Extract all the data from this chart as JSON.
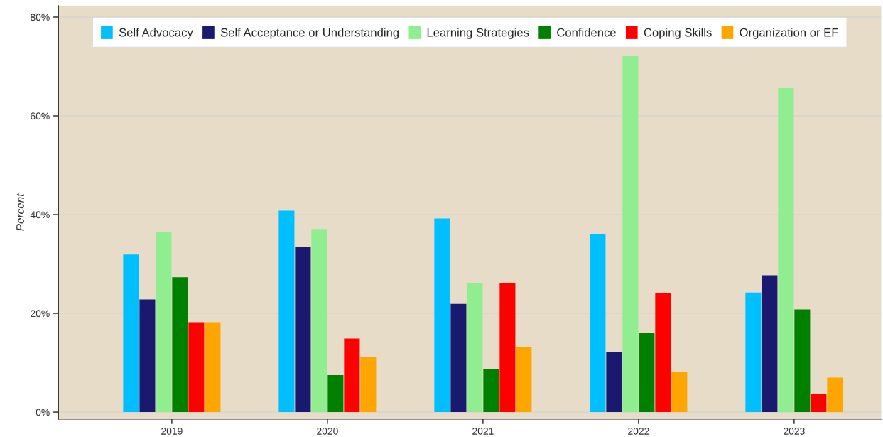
{
  "chart_data": {
    "type": "bar",
    "ylabel": "Percent",
    "categories": [
      "2019",
      "2020",
      "2021",
      "2022",
      "2023"
    ],
    "series": [
      {
        "name": "Self Advocacy",
        "color": "#00bfff",
        "values": [
          31.9,
          40.8,
          39.2,
          36.1,
          24.2
        ]
      },
      {
        "name": "Self Acceptance or Understanding",
        "color": "#191970",
        "values": [
          22.8,
          33.4,
          21.9,
          12.1,
          27.7
        ]
      },
      {
        "name": "Learning Strategies",
        "color": "#90ee90",
        "values": [
          36.5,
          37.1,
          26.2,
          72.1,
          65.6
        ]
      },
      {
        "name": "Confidence",
        "color": "#008000",
        "values": [
          27.3,
          7.5,
          8.8,
          16.1,
          20.8
        ]
      },
      {
        "name": "Coping Skills",
        "color": "#ff0000",
        "values": [
          18.2,
          14.9,
          26.2,
          24.1,
          3.6
        ]
      },
      {
        "name": "Organization or EF",
        "color": "#ffa500",
        "values": [
          18.2,
          11.2,
          13.1,
          8.1,
          7.0
        ]
      }
    ],
    "ylim": [
      -1.4,
      82.3
    ],
    "yticks": [
      {
        "value": 0,
        "label": "0%"
      },
      {
        "value": 20,
        "label": "20%"
      },
      {
        "value": 40,
        "label": "40%"
      },
      {
        "value": 60,
        "label": "60%"
      },
      {
        "value": 80,
        "label": "80%"
      }
    ],
    "grid": "y",
    "legend": "top"
  }
}
